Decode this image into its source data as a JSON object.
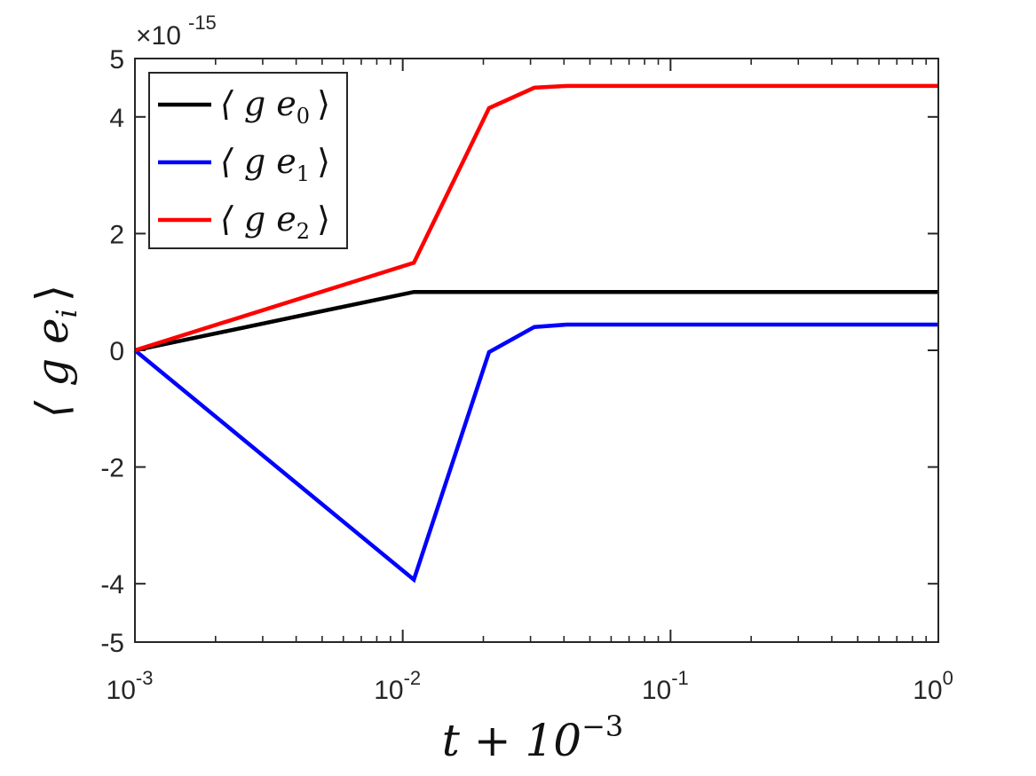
{
  "chart_data": {
    "type": "line",
    "xscale": "log",
    "xlim": [
      0.001,
      1
    ],
    "ylim": [
      -5,
      5
    ],
    "y_multiplier": "×10",
    "y_multiplier_exponent": "-15",
    "x_ticks": [
      {
        "value": 0.001,
        "base": "10",
        "exp": "-3"
      },
      {
        "value": 0.01,
        "base": "10",
        "exp": "-2"
      },
      {
        "value": 0.1,
        "base": "10",
        "exp": "-1"
      },
      {
        "value": 1,
        "base": "10",
        "exp": "0"
      }
    ],
    "y_ticks": [
      {
        "value": -5,
        "label": "-5"
      },
      {
        "value": -4,
        "label": "-4"
      },
      {
        "value": -2,
        "label": "-2"
      },
      {
        "value": 0,
        "label": "0"
      },
      {
        "value": 2,
        "label": "2"
      },
      {
        "value": 4,
        "label": "4"
      },
      {
        "value": 5,
        "label": "5"
      }
    ],
    "xlabel": "t + 10",
    "xlabel_exponent": "−3",
    "ylabel": "⟨ g e",
    "ylabel_subscript": "i",
    "ylabel_close": "⟩",
    "grid": false,
    "legend_position": "top-left",
    "series": [
      {
        "name": "⟨ g e",
        "name_subscript": "0",
        "name_close": "⟩",
        "color": "#000000",
        "x": [
          0.001,
          0.011,
          0.021,
          0.031,
          0.041,
          0.051,
          0.1,
          0.5,
          1
        ],
        "y": [
          0,
          1.0,
          1.0,
          1.0,
          1.0,
          1.0,
          1.0,
          1.0,
          1.0
        ]
      },
      {
        "name": "⟨ g e",
        "name_subscript": "1",
        "name_close": "⟩",
        "color": "#0000ff",
        "x": [
          0.001,
          0.011,
          0.021,
          0.031,
          0.041,
          0.051,
          0.1,
          0.5,
          1
        ],
        "y": [
          0,
          -3.93,
          -0.03,
          0.4,
          0.44,
          0.44,
          0.44,
          0.44,
          0.44
        ]
      },
      {
        "name": "⟨ g e",
        "name_subscript": "2",
        "name_close": "⟩",
        "color": "#ff0000",
        "x": [
          0.001,
          0.011,
          0.021,
          0.031,
          0.041,
          0.051,
          0.1,
          0.5,
          1
        ],
        "y": [
          0,
          1.5,
          4.15,
          4.5,
          4.53,
          4.53,
          4.53,
          4.53,
          4.53
        ]
      }
    ]
  }
}
